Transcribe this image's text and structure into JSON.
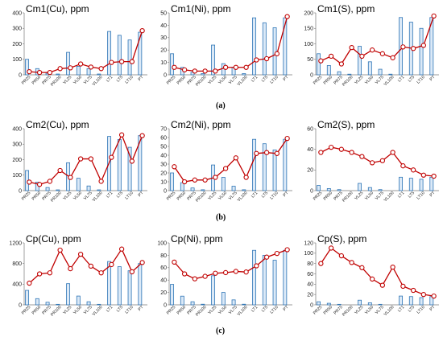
{
  "row_labels": [
    "(a)",
    "(b)",
    "(c)"
  ],
  "style": {
    "bar_fill": "#dbe9f7",
    "bar_stroke": "#2e75b6",
    "line_color": "#c00000",
    "marker_fill": "#ffffff"
  },
  "chart_data": [
    {
      "id": "cm1-cu",
      "type": "bar",
      "title": "Cm1(Cu), ppm",
      "categories": [
        "PR25",
        "PR50",
        "PR75",
        "PR100",
        "VL25",
        "VL50",
        "VL75",
        "VL100",
        "LT1",
        "LT5",
        "LT10",
        "PT"
      ],
      "ylim": [
        0,
        400
      ],
      "yticks": [
        0,
        100,
        200,
        300,
        400
      ],
      "bar_values": [
        100,
        40,
        10,
        5,
        145,
        55,
        40,
        5,
        280,
        255,
        225,
        275
      ],
      "line_values": [
        20,
        15,
        15,
        40,
        45,
        70,
        50,
        40,
        80,
        85,
        85,
        285
      ]
    },
    {
      "id": "cm1-ni",
      "type": "bar",
      "title": "Cm1(Ni), ppm",
      "categories": [
        "PR25",
        "PR50",
        "PR75",
        "PR100",
        "VL25",
        "VL50",
        "VL75",
        "VL100",
        "LT1",
        "LT5",
        "LT10",
        "PT"
      ],
      "ylim": [
        0,
        50
      ],
      "yticks": [
        0,
        10,
        20,
        30,
        40,
        50
      ],
      "bar_values": [
        17,
        6,
        2,
        1,
        24,
        9,
        6,
        1,
        46,
        42,
        38,
        46
      ],
      "line_values": [
        6,
        4,
        3,
        3,
        3,
        6,
        6,
        6,
        12,
        13,
        17,
        47
      ]
    },
    {
      "id": "cm1-s",
      "type": "bar",
      "title": "Cm1(S), ppm",
      "categories": [
        "PR25",
        "PR50",
        "PR75",
        "PR100",
        "VL25",
        "VL50",
        "VL75",
        "VL100",
        "LT1",
        "LT5",
        "LT10",
        "PT"
      ],
      "ylim": [
        0,
        200
      ],
      "yticks": [
        0,
        50,
        100,
        150,
        200
      ],
      "bar_values": [
        68,
        30,
        10,
        2,
        92,
        42,
        18,
        2,
        185,
        170,
        150,
        185
      ],
      "line_values": [
        45,
        60,
        35,
        88,
        60,
        80,
        68,
        55,
        90,
        85,
        95,
        190
      ]
    },
    {
      "id": "cm2-cu",
      "type": "bar",
      "title": "Cm2(Cu), ppm",
      "categories": [
        "PR25",
        "PR50",
        "PR75",
        "PR100",
        "VL25",
        "VL50",
        "VL75",
        "VL100",
        "LT1",
        "LT5",
        "LT10",
        "PT"
      ],
      "ylim": [
        0,
        400
      ],
      "yticks": [
        0,
        100,
        200,
        300,
        400
      ],
      "bar_values": [
        130,
        55,
        20,
        5,
        180,
        80,
        30,
        5,
        350,
        330,
        280,
        355
      ],
      "line_values": [
        55,
        40,
        60,
        130,
        85,
        205,
        205,
        60,
        215,
        360,
        190,
        355
      ]
    },
    {
      "id": "cm2-ni",
      "type": "bar",
      "title": "Cm2(Ni), ppm",
      "categories": [
        "PR25",
        "PR50",
        "PR75",
        "PR100",
        "VL25",
        "VL50",
        "VL75",
        "VL100",
        "LT1",
        "LT5",
        "LT10",
        "PT"
      ],
      "ylim": [
        0,
        70
      ],
      "yticks": [
        0,
        10,
        20,
        30,
        40,
        50,
        60,
        70
      ],
      "bar_values": [
        20,
        9,
        3,
        1,
        29,
        15,
        5,
        1,
        58,
        53,
        46,
        58
      ],
      "line_values": [
        27,
        10,
        12,
        12,
        15,
        25,
        37,
        15,
        42,
        43,
        42,
        59
      ]
    },
    {
      "id": "cm2-s",
      "type": "bar",
      "title": "Cm2(S), ppm",
      "categories": [
        "PR25",
        "PR50",
        "PR75",
        "PR100",
        "VL25",
        "VL50",
        "VL75",
        "VL100",
        "LT1",
        "LT5",
        "LT10",
        "PT"
      ],
      "ylim": [
        0,
        60
      ],
      "yticks": [
        0,
        20,
        40,
        60
      ],
      "bar_values": [
        5,
        2,
        1,
        0,
        7,
        3,
        1,
        0,
        13,
        12,
        11,
        13
      ],
      "line_values": [
        37,
        42,
        40,
        37,
        33,
        27,
        29,
        37,
        24,
        20,
        15,
        14
      ]
    },
    {
      "id": "cp-cu",
      "type": "bar",
      "title": "Cp(Cu), ppm",
      "categories": [
        "PR25",
        "PR50",
        "PR75",
        "PR100",
        "VL25",
        "VL50",
        "VL75",
        "VL100",
        "LT1",
        "LT5",
        "LT10",
        "PT"
      ],
      "ylim": [
        0,
        1200
      ],
      "yticks": [
        0,
        400,
        800,
        1200
      ],
      "bar_values": [
        280,
        120,
        50,
        10,
        410,
        170,
        60,
        10,
        840,
        740,
        660,
        800
      ],
      "line_values": [
        420,
        600,
        620,
        1060,
        700,
        980,
        750,
        620,
        780,
        1080,
        640,
        820
      ]
    },
    {
      "id": "cp-ni",
      "type": "bar",
      "title": "Cp(Ni), ppm",
      "categories": [
        "PR25",
        "PR50",
        "PR75",
        "PR100",
        "VL25",
        "VL50",
        "VL75",
        "VL100",
        "LT1",
        "LT5",
        "LT10",
        "PT"
      ],
      "ylim": [
        0,
        100
      ],
      "yticks": [
        0,
        20,
        40,
        60,
        80,
        100
      ],
      "bar_values": [
        33,
        14,
        5,
        1,
        47,
        20,
        8,
        1,
        88,
        80,
        72,
        88
      ],
      "line_values": [
        69,
        50,
        42,
        46,
        51,
        52,
        54,
        53,
        63,
        77,
        83,
        89
      ]
    },
    {
      "id": "cp-s",
      "type": "bar",
      "title": "Cp(S), ppm",
      "categories": [
        "PR25",
        "PR50",
        "PR75",
        "PR100",
        "VL25",
        "VL50",
        "VL75",
        "VL100",
        "LT1",
        "LT5",
        "LT10",
        "PT"
      ],
      "ylim": [
        0,
        120
      ],
      "yticks": [
        0,
        20,
        40,
        60,
        80,
        100,
        120
      ],
      "bar_values": [
        6,
        3,
        1,
        0,
        9,
        4,
        1,
        0,
        17,
        16,
        14,
        16
      ],
      "line_values": [
        80,
        110,
        95,
        82,
        72,
        50,
        38,
        73,
        36,
        28,
        20,
        17
      ]
    }
  ]
}
